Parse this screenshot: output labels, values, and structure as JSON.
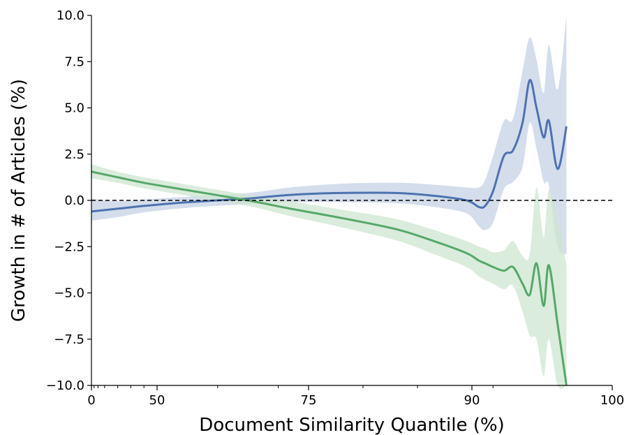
{
  "chart_data": {
    "type": "line",
    "xlabel": "Document Similarity Quantile (%)",
    "ylabel": "Growth in # of Articles (%)",
    "ylim": [
      -10,
      10
    ],
    "y_ticks": [
      {
        "value": 10,
        "label": "10.0"
      },
      {
        "value": 7.5,
        "label": "7.5"
      },
      {
        "value": 5,
        "label": "5.0"
      },
      {
        "value": 2.5,
        "label": "2.5"
      },
      {
        "value": 0,
        "label": "0.0"
      },
      {
        "value": -2.5,
        "label": "−2.5"
      },
      {
        "value": -5,
        "label": "−5.0"
      },
      {
        "value": -7.5,
        "label": "−7.5"
      },
      {
        "value": -10,
        "label": "−10.0"
      }
    ],
    "x_scale": "logit (quantile)",
    "x_ticks": [
      {
        "value": 0,
        "label": "0"
      },
      {
        "value": 50,
        "label": "50"
      },
      {
        "value": 75,
        "label": "75"
      },
      {
        "value": 90,
        "label": "90"
      },
      {
        "value": 100,
        "label": "100"
      }
    ],
    "reference_line": {
      "y": 0,
      "style": "dashed",
      "color": "#000000"
    },
    "series": [
      {
        "color": "#4c72b0",
        "band_color": "#c5d1e6",
        "points": [
          {
            "x": 0,
            "y": -0.6,
            "lo": -1.1,
            "hi": 0.1
          },
          {
            "x": 20,
            "y": -0.45,
            "lo": -0.9,
            "hi": -0.05
          },
          {
            "x": 40,
            "y": -0.3,
            "lo": -0.65,
            "hi": 0.05
          },
          {
            "x": 55,
            "y": -0.1,
            "lo": -0.4,
            "hi": 0.2
          },
          {
            "x": 65,
            "y": 0.1,
            "lo": -0.2,
            "hi": 0.4
          },
          {
            "x": 72,
            "y": 0.3,
            "lo": -0.1,
            "hi": 0.7
          },
          {
            "x": 78,
            "y": 0.4,
            "lo": -0.1,
            "hi": 0.9
          },
          {
            "x": 83,
            "y": 0.4,
            "lo": -0.15,
            "hi": 0.95
          },
          {
            "x": 86.5,
            "y": 0.25,
            "lo": -0.35,
            "hi": 0.85
          },
          {
            "x": 89.5,
            "y": 0.0,
            "lo": -0.7,
            "hi": 0.7
          },
          {
            "x": 92,
            "y": -0.35,
            "lo": -1.4,
            "hi": 0.7
          },
          {
            "x": 93.5,
            "y": -0.3,
            "lo": -1.6,
            "hi": 1.1
          },
          {
            "x": 95,
            "y": 0.5,
            "lo": -1.2,
            "hi": 2.4
          },
          {
            "x": 96.5,
            "y": 2.4,
            "lo": 0.6,
            "hi": 4.3
          },
          {
            "x": 97.4,
            "y": 2.7,
            "lo": 1.0,
            "hi": 4.4
          },
          {
            "x": 98.1,
            "y": 4.2,
            "lo": 1.8,
            "hi": 7.0
          },
          {
            "x": 98.5,
            "y": 6.5,
            "lo": 4.2,
            "hi": 8.8
          },
          {
            "x": 98.8,
            "y": 5.0,
            "lo": 2.8,
            "hi": 7.6
          },
          {
            "x": 99.05,
            "y": 3.4,
            "lo": 1.0,
            "hi": 5.8
          },
          {
            "x": 99.2,
            "y": 4.3,
            "lo": 0.8,
            "hi": 8.4
          },
          {
            "x": 99.4,
            "y": 1.7,
            "lo": -2.5,
            "hi": 6.0
          },
          {
            "x": 99.55,
            "y": 4.0,
            "lo": -2.9,
            "hi": 10.0
          }
        ]
      },
      {
        "color": "#55a868",
        "band_color": "#cde6d0",
        "points": [
          {
            "x": 0,
            "y": 1.55,
            "lo": 1.2,
            "hi": 1.95
          },
          {
            "x": 20,
            "y": 1.25,
            "lo": 0.95,
            "hi": 1.55
          },
          {
            "x": 40,
            "y": 0.95,
            "lo": 0.65,
            "hi": 1.25
          },
          {
            "x": 55,
            "y": 0.55,
            "lo": 0.25,
            "hi": 0.85
          },
          {
            "x": 65,
            "y": 0.0,
            "lo": -0.3,
            "hi": 0.3
          },
          {
            "x": 72,
            "y": -0.45,
            "lo": -0.85,
            "hi": -0.05
          },
          {
            "x": 78,
            "y": -0.95,
            "lo": -1.45,
            "hi": -0.5
          },
          {
            "x": 83,
            "y": -1.55,
            "lo": -2.15,
            "hi": -1.0
          },
          {
            "x": 86.5,
            "y": -2.2,
            "lo": -2.9,
            "hi": -1.6
          },
          {
            "x": 89.5,
            "y": -2.85,
            "lo": -3.6,
            "hi": -2.2
          },
          {
            "x": 92,
            "y": -3.25,
            "lo": -4.1,
            "hi": -2.5
          },
          {
            "x": 93.5,
            "y": -3.4,
            "lo": -4.3,
            "hi": -2.6
          },
          {
            "x": 95,
            "y": -3.6,
            "lo": -4.5,
            "hi": -2.8
          },
          {
            "x": 96.5,
            "y": -3.8,
            "lo": -4.8,
            "hi": -2.7
          },
          {
            "x": 97.4,
            "y": -3.6,
            "lo": -4.6,
            "hi": -2.2
          },
          {
            "x": 98.1,
            "y": -4.5,
            "lo": -6.0,
            "hi": -3.0
          },
          {
            "x": 98.5,
            "y": -5.1,
            "lo": -7.3,
            "hi": -2.9
          },
          {
            "x": 98.8,
            "y": -3.4,
            "lo": -7.5,
            "hi": 0.7
          },
          {
            "x": 99.05,
            "y": -5.7,
            "lo": -9.5,
            "hi": -2.0
          },
          {
            "x": 99.2,
            "y": -3.5,
            "lo": -7.5,
            "hi": 0.6
          },
          {
            "x": 99.4,
            "y": -6.7,
            "lo": -10.0,
            "hi": -1.0
          },
          {
            "x": 99.55,
            "y": -10.0,
            "lo": -10.0,
            "hi": -3.5
          }
        ]
      }
    ]
  }
}
